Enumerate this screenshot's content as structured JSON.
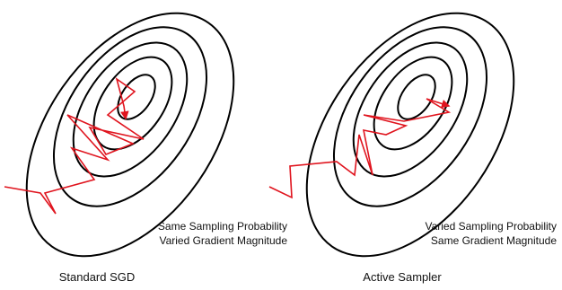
{
  "panels": [
    {
      "caption": "Standard SGD",
      "note_line1": "Same Sampling Probability",
      "note_line2": "Varied Gradient Magnitude"
    },
    {
      "caption": "Active Sampler",
      "note_line1": "Varied Sampling Probability",
      "note_line2": "Same Gradient Magnitude"
    }
  ],
  "colors": {
    "contour": "#000000",
    "path": "#e0141e"
  }
}
